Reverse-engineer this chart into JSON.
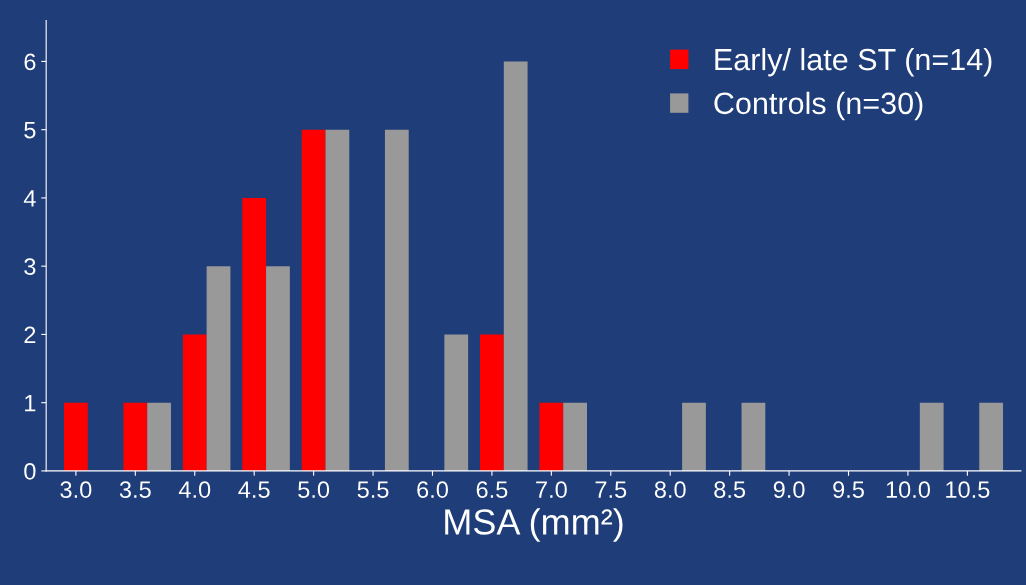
{
  "chart_data": {
    "type": "bar",
    "xlabel": "MSA (mm²)",
    "categories": [
      "3.0",
      "3.5",
      "4.0",
      "4.5",
      "5.0",
      "5.5",
      "6.0",
      "6.5",
      "7.0",
      "7.5",
      "8.0",
      "8.5",
      "9.0",
      "9.5",
      "10.0",
      "10.5"
    ],
    "series": [
      {
        "name": "Early/ late ST (n=14)",
        "color": "#ff0000",
        "values": [
          1,
          1,
          2,
          4,
          5,
          0,
          0,
          2,
          1,
          0,
          0,
          0,
          0,
          0,
          0,
          0
        ]
      },
      {
        "name": "Controls (n=30)",
        "color": "#999999",
        "values": [
          0,
          1,
          3,
          3,
          5,
          5,
          2,
          6,
          1,
          0,
          1,
          1,
          0,
          0,
          1,
          1
        ]
      }
    ],
    "ylim": [
      0,
      6.6
    ],
    "yticks": [
      0,
      1,
      2,
      3,
      4,
      5,
      6
    ],
    "grid": false,
    "legend": "top right"
  }
}
